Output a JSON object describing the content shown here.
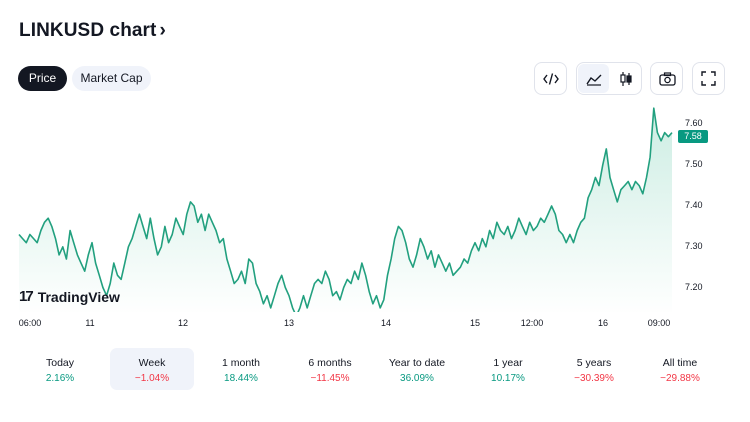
{
  "header": {
    "title": "LINKUSD chart",
    "chevron": "›"
  },
  "tabs": [
    {
      "label": "Price",
      "active": true
    },
    {
      "label": "Market Cap",
      "active": false
    }
  ],
  "toolbar": {
    "icons": [
      "embed-code-icon",
      "area-chart-icon",
      "candlestick-icon",
      "camera-icon",
      "fullscreen-icon"
    ],
    "selected": "area-chart-icon"
  },
  "watermark": {
    "text": "TradingView"
  },
  "colors": {
    "line": "#22a07f",
    "fill_top": "#c9ece1",
    "positive": "#089981",
    "negative": "#f23645",
    "selected_bg": "#f0f3fa"
  },
  "chart_data": {
    "type": "area",
    "x_ticks": [
      "06:00",
      "11",
      "12",
      "13",
      "14",
      "15",
      "12:00",
      "16",
      "09:00"
    ],
    "y_ticks": [
      "7.60",
      "7.50",
      "7.40",
      "7.30",
      "7.20"
    ],
    "ylim": [
      7.14,
      7.66
    ],
    "last_price": "7.58",
    "series": [
      {
        "values": [
          7.33,
          7.32,
          7.31,
          7.33,
          7.32,
          7.31,
          7.34,
          7.36,
          7.37,
          7.35,
          7.32,
          7.28,
          7.3,
          7.27,
          7.34,
          7.31,
          7.28,
          7.26,
          7.24,
          7.28,
          7.31,
          7.26,
          7.23,
          7.2,
          7.18,
          7.21,
          7.26,
          7.23,
          7.22,
          7.26,
          7.3,
          7.32,
          7.35,
          7.38,
          7.35,
          7.32,
          7.37,
          7.32,
          7.28,
          7.3,
          7.35,
          7.31,
          7.33,
          7.37,
          7.35,
          7.33,
          7.38,
          7.41,
          7.4,
          7.36,
          7.38,
          7.34,
          7.38,
          7.36,
          7.34,
          7.31,
          7.32,
          7.27,
          7.24,
          7.21,
          7.22,
          7.24,
          7.21,
          7.27,
          7.26,
          7.21,
          7.19,
          7.16,
          7.18,
          7.15,
          7.18,
          7.21,
          7.23,
          7.2,
          7.18,
          7.15,
          7.13,
          7.15,
          7.18,
          7.15,
          7.18,
          7.21,
          7.22,
          7.21,
          7.24,
          7.22,
          7.18,
          7.19,
          7.17,
          7.2,
          7.22,
          7.21,
          7.24,
          7.22,
          7.26,
          7.23,
          7.19,
          7.16,
          7.18,
          7.15,
          7.17,
          7.23,
          7.27,
          7.32,
          7.35,
          7.34,
          7.31,
          7.27,
          7.25,
          7.28,
          7.32,
          7.3,
          7.27,
          7.29,
          7.25,
          7.28,
          7.26,
          7.24,
          7.26,
          7.23,
          7.24,
          7.25,
          7.27,
          7.26,
          7.29,
          7.31,
          7.29,
          7.32,
          7.3,
          7.34,
          7.32,
          7.36,
          7.34,
          7.33,
          7.35,
          7.32,
          7.34,
          7.37,
          7.35,
          7.33,
          7.36,
          7.34,
          7.35,
          7.37,
          7.36,
          7.38,
          7.4,
          7.38,
          7.34,
          7.33,
          7.31,
          7.33,
          7.31,
          7.34,
          7.36,
          7.37,
          7.42,
          7.44,
          7.47,
          7.45,
          7.5,
          7.54,
          7.47,
          7.44,
          7.41,
          7.44,
          7.45,
          7.46,
          7.44,
          7.46,
          7.45,
          7.43,
          7.47,
          7.52,
          7.64,
          7.58,
          7.56,
          7.58,
          7.57,
          7.58
        ]
      }
    ]
  },
  "periods": [
    {
      "label": "Today",
      "value": "2.16%",
      "sign": "positive"
    },
    {
      "label": "Week",
      "value": "−1.04%",
      "sign": "negative",
      "selected": true
    },
    {
      "label": "1 month",
      "value": "18.44%",
      "sign": "positive"
    },
    {
      "label": "6 months",
      "value": "−11.45%",
      "sign": "negative"
    },
    {
      "label": "Year to date",
      "value": "36.09%",
      "sign": "positive"
    },
    {
      "label": "1 year",
      "value": "10.17%",
      "sign": "positive"
    },
    {
      "label": "5 years",
      "value": "−30.39%",
      "sign": "negative"
    },
    {
      "label": "All time",
      "value": "−29.88%",
      "sign": "negative"
    }
  ]
}
